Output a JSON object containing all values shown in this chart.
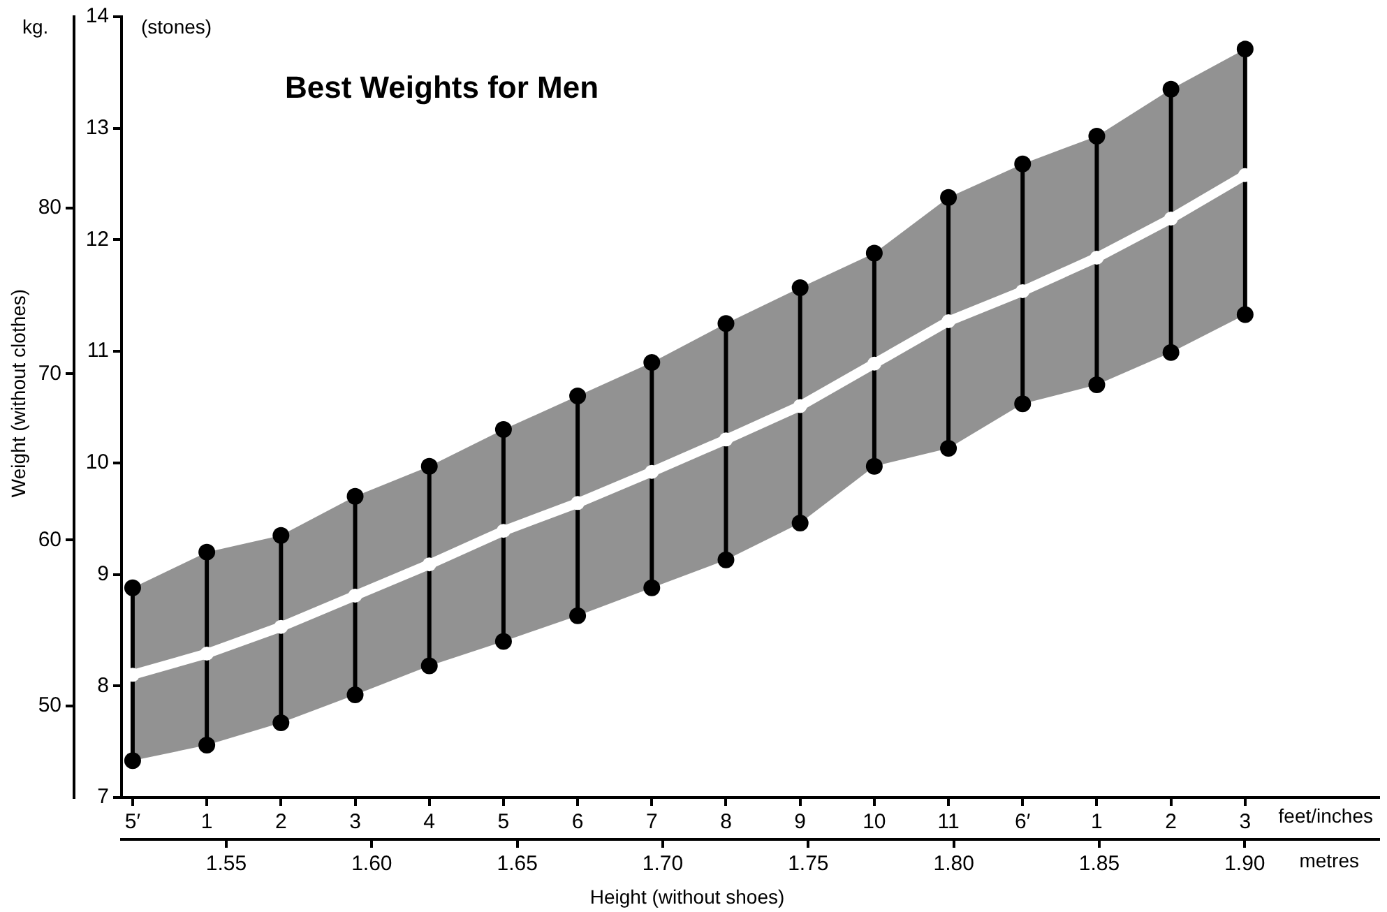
{
  "chart_data": {
    "type": "line",
    "title": "Best Weights for Men",
    "xlabel": "feet/inches",
    "x2label": "metres",
    "ylabel": "(stones)",
    "y2label": "kg.",
    "annotations": [
      "Weight (without clothes)",
      "Height (without shoes)"
    ],
    "categories": [
      "5′",
      "1",
      "2",
      "3",
      "4",
      "5",
      "6",
      "7",
      "8",
      "9",
      "10",
      "11",
      "6′",
      "1",
      "2",
      "3"
    ],
    "series": [
      {
        "type": "scatter",
        "color": "#000000",
        "values": [
          8.88,
          9.2,
          9.35,
          9.7,
          9.97,
          10.3,
          10.6,
          10.9,
          11.25,
          11.57,
          11.88,
          12.38,
          12.68,
          12.93,
          13.35,
          13.71
        ]
      },
      {
        "type": "scatter",
        "color": "#000000",
        "values": [
          7.33,
          7.47,
          7.67,
          7.92,
          8.18,
          8.4,
          8.63,
          8.88,
          9.13,
          9.46,
          9.97,
          10.13,
          10.53,
          10.7,
          10.99,
          11.33
        ]
      },
      {
        "color": "#ffffff",
        "values": [
          8.1,
          8.29,
          8.53,
          8.81,
          9.09,
          9.39,
          9.64,
          9.92,
          10.21,
          10.51,
          10.89,
          11.27,
          11.54,
          11.84,
          12.19,
          12.58
        ],
        "lower": [
          7.33,
          7.47,
          7.67,
          7.92,
          8.18,
          8.4,
          8.63,
          8.88,
          9.13,
          9.46,
          9.97,
          10.13,
          10.53,
          10.7,
          10.99,
          11.33
        ],
        "upper": [
          8.88,
          9.2,
          9.35,
          9.7,
          9.97,
          10.3,
          10.6,
          10.9,
          11.25,
          11.57,
          11.88,
          12.38,
          12.68,
          12.93,
          13.35,
          13.71
        ]
      }
    ],
    "ylim": [
      7,
      14
    ],
    "yticks": [
      7,
      8,
      9,
      10,
      11,
      12,
      13,
      14
    ],
    "y2lim": [
      44.5,
      91.5
    ],
    "y2ticks": [
      50,
      60,
      70,
      80
    ],
    "x2lim": [
      1.514,
      1.946
    ],
    "x2ticks": [
      1.55,
      {
        "value": 1.6,
        "label": "1.60"
      },
      1.65,
      {
        "value": 1.7,
        "label": "1.70"
      },
      1.75,
      {
        "value": 1.8,
        "label": "1.80"
      },
      1.85,
      {
        "value": 1.9,
        "label": "1.90"
      }
    ],
    "grid": false,
    "legend": false,
    "marker": "circle"
  }
}
